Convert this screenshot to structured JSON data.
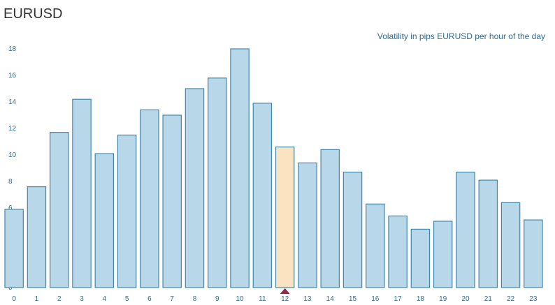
{
  "header": {
    "title": "EURUSD",
    "subtitle": "Volatility in pips EURUSD per hour of the day"
  },
  "colors": {
    "bar_fill": "#b8d7e8",
    "bar_stroke": "#3f87ad",
    "highlight_fill": "#fbe3c1",
    "highlight_stroke": "#3f87ad",
    "marker": "#8a2a45",
    "tick_text": "#2d6a8f"
  },
  "chart_data": {
    "type": "bar",
    "title": "EURUSD",
    "subtitle": "Volatility in pips EURUSD per hour of the day",
    "categories": [
      "0",
      "1",
      "2",
      "3",
      "4",
      "5",
      "6",
      "7",
      "8",
      "9",
      "10",
      "11",
      "12",
      "13",
      "14",
      "15",
      "16",
      "17",
      "18",
      "19",
      "20",
      "21",
      "22",
      "23"
    ],
    "values": [
      5.9,
      7.6,
      11.7,
      14.2,
      10.1,
      11.5,
      13.4,
      13.0,
      15.0,
      15.8,
      18.0,
      13.9,
      10.6,
      9.4,
      10.4,
      8.7,
      6.3,
      5.4,
      4.4,
      5.0,
      8.7,
      8.1,
      6.4,
      5.1
    ],
    "yticks": [
      0,
      2,
      4,
      6,
      8,
      10,
      12,
      14,
      16,
      18
    ],
    "ylim": [
      0,
      18
    ],
    "highlight_index": 12,
    "grid": false,
    "legend": "none"
  }
}
